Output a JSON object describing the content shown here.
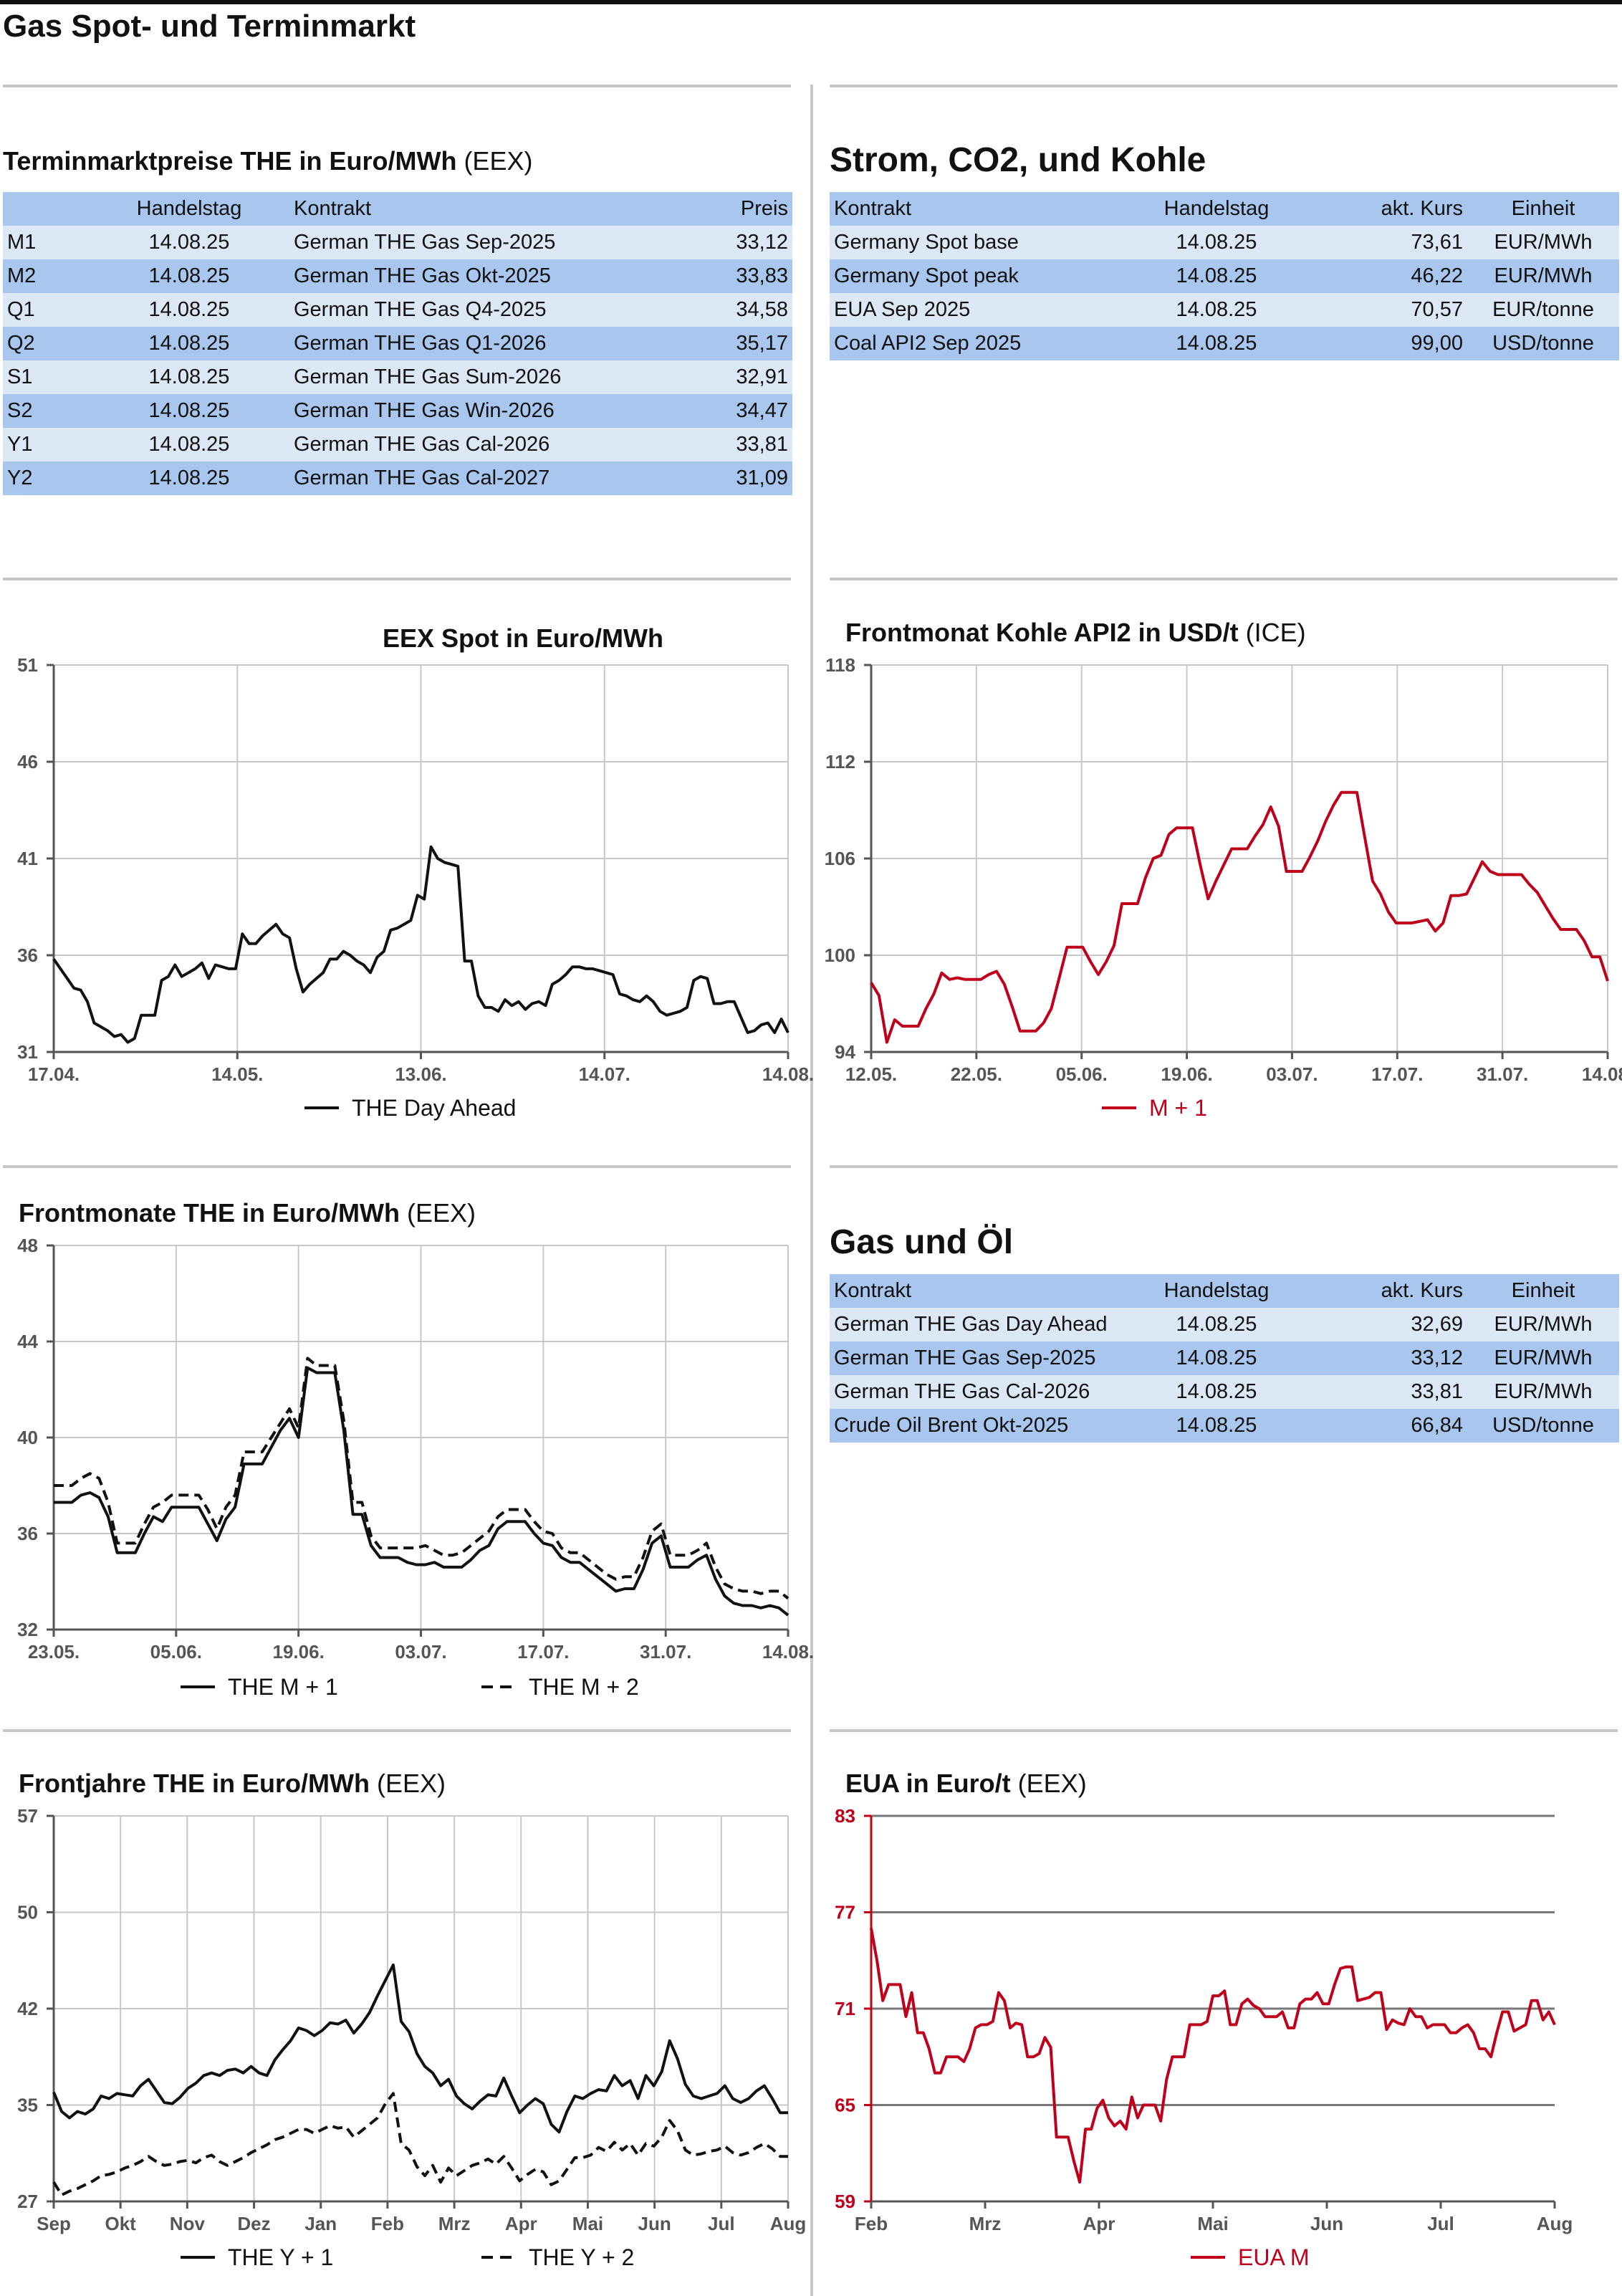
{
  "page_title": "Gas Spot- und Terminmarkt",
  "terminmarkt": {
    "title_bold": "Terminmarktpreise THE in Euro/MWh",
    "title_thin": " (EEX)",
    "headers": [
      "",
      "Handelstag",
      "Kontrakt",
      "Preis"
    ],
    "rows": [
      [
        "M1",
        "14.08.25",
        "German THE Gas Sep-2025",
        "33,12"
      ],
      [
        "M2",
        "14.08.25",
        "German THE Gas Okt-2025",
        "33,83"
      ],
      [
        "Q1",
        "14.08.25",
        "German THE Gas Q4-2025",
        "34,58"
      ],
      [
        "Q2",
        "14.08.25",
        "German THE Gas Q1-2026",
        "35,17"
      ],
      [
        "S1",
        "14.08.25",
        "German THE Gas Sum-2026",
        "32,91"
      ],
      [
        "S2",
        "14.08.25",
        "German THE Gas Win-2026",
        "34,47"
      ],
      [
        "Y1",
        "14.08.25",
        "German THE Gas Cal-2026",
        "33,81"
      ],
      [
        "Y2",
        "14.08.25",
        "German THE Gas Cal-2027",
        "31,09"
      ]
    ]
  },
  "strom": {
    "title": "Strom, CO2, und Kohle",
    "headers": [
      "Kontrakt",
      "Handelstag",
      "akt. Kurs",
      "Einheit"
    ],
    "rows": [
      [
        "Germany Spot base",
        "14.08.25",
        "73,61",
        "EUR/MWh"
      ],
      [
        "Germany Spot peak",
        "14.08.25",
        "46,22",
        "EUR/MWh"
      ],
      [
        "EUA Sep 2025",
        "14.08.25",
        "70,57",
        "EUR/tonne"
      ],
      [
        "Coal API2 Sep 2025",
        "14.08.25",
        "99,00",
        "USD/tonne"
      ]
    ]
  },
  "gasoel": {
    "title": "Gas und Öl",
    "headers": [
      "Kontrakt",
      "Handelstag",
      "akt. Kurs",
      "Einheit"
    ],
    "rows": [
      [
        "German THE Gas Day Ahead",
        "14.08.25",
        "32,69",
        "EUR/MWh"
      ],
      [
        "German THE Gas Sep-2025",
        "14.08.25",
        "33,12",
        "EUR/MWh"
      ],
      [
        "German THE Gas Cal-2026",
        "14.08.25",
        "33,81",
        "EUR/MWh"
      ],
      [
        "Crude Oil Brent Okt-2025",
        "14.08.25",
        "66,84",
        "USD/tonne"
      ]
    ]
  },
  "chart_data": [
    {
      "id": "spot",
      "type": "line",
      "title": "EEX Spot in Euro/MWh",
      "title_thin": "",
      "ylim": [
        31,
        51
      ],
      "yticks": [
        "51",
        "46",
        "41",
        "36",
        "31"
      ],
      "xticks": [
        "17.04.",
        "14.05.",
        "13.06.",
        "14.07.",
        "14.08."
      ],
      "grid": true,
      "legend": "bottom",
      "series": [
        {
          "name": "THE Day Ahead",
          "style": "solid",
          "color": "#111111",
          "values": [
            35.8,
            35.3,
            34.8,
            34.3,
            34.2,
            33.6,
            32.5,
            32.3,
            32.1,
            31.8,
            31.9,
            31.5,
            31.7,
            32.9,
            32.9,
            32.9,
            34.7,
            34.9,
            35.5,
            34.9,
            35.1,
            35.3,
            35.6,
            34.8,
            35.5,
            35.4,
            35.3,
            35.3,
            37.1,
            36.6,
            36.6,
            37.0,
            37.3,
            37.6,
            37.1,
            36.9,
            35.3,
            34.1,
            34.5,
            34.8,
            35.1,
            35.8,
            35.8,
            36.2,
            36.0,
            35.7,
            35.5,
            35.1,
            35.9,
            36.2,
            37.3,
            37.4,
            37.6,
            37.8,
            39.1,
            38.9,
            41.6,
            41.0,
            40.8,
            40.7,
            40.6,
            35.7,
            35.7,
            33.9,
            33.3,
            33.3,
            33.1,
            33.7,
            33.4,
            33.6,
            33.2,
            33.5,
            33.6,
            33.4,
            34.5,
            34.7,
            35.0,
            35.4,
            35.4,
            35.3,
            35.3,
            35.2,
            35.1,
            35.0,
            34.0,
            33.9,
            33.7,
            33.6,
            33.9,
            33.6,
            33.1,
            32.9,
            33.0,
            33.1,
            33.3,
            34.7,
            34.9,
            34.8,
            33.5,
            33.5,
            33.6,
            33.6,
            32.8,
            32.0,
            32.1,
            32.4,
            32.5,
            32.0,
            32.7,
            32.0
          ]
        }
      ]
    },
    {
      "id": "kohle",
      "type": "line",
      "title": "Frontmonat Kohle API2 in USD/t",
      "title_thin": " (ICE)",
      "ylim": [
        94,
        118
      ],
      "yticks": [
        "118",
        "112",
        "106",
        "100",
        "94"
      ],
      "xticks": [
        "12.05.",
        "22.05.",
        "05.06.",
        "19.06.",
        "03.07.",
        "17.07.",
        "31.07.",
        "14.08."
      ],
      "grid": true,
      "legend": "bottom",
      "series": [
        {
          "name": "M + 1",
          "style": "solid",
          "color": "#c0001a",
          "values": [
            98.3,
            97.5,
            94.6,
            96.0,
            95.6,
            95.6,
            95.6,
            96.7,
            97.6,
            98.9,
            98.5,
            98.6,
            98.5,
            98.5,
            98.5,
            98.8,
            99.0,
            98.2,
            96.8,
            95.3,
            95.3,
            95.3,
            95.8,
            96.7,
            98.6,
            100.5,
            100.5,
            100.5,
            99.6,
            98.8,
            99.6,
            100.6,
            103.2,
            103.2,
            103.2,
            104.8,
            106.0,
            106.2,
            107.5,
            107.9,
            107.9,
            107.9,
            105.6,
            103.5,
            104.6,
            105.6,
            106.6,
            106.6,
            106.6,
            107.4,
            108.1,
            109.2,
            108.0,
            105.2,
            105.2,
            105.2,
            106.1,
            107.1,
            108.3,
            109.3,
            110.1,
            110.1,
            110.1,
            107.3,
            104.6,
            103.8,
            102.7,
            102.0,
            102.0,
            102.0,
            102.1,
            102.2,
            101.5,
            102.0,
            103.7,
            103.7,
            103.8,
            104.8,
            105.8,
            105.2,
            105.0,
            105.0,
            105.0,
            105.0,
            104.4,
            103.9,
            103.1,
            102.3,
            101.6,
            101.6,
            101.6,
            100.9,
            99.9,
            99.9,
            98.4
          ]
        }
      ]
    },
    {
      "id": "frontmonate",
      "type": "line",
      "title": "Frontmonate THE in Euro/MWh",
      "title_thin": " (EEX)",
      "ylim": [
        32,
        48
      ],
      "yticks": [
        "48",
        "44",
        "40",
        "36",
        "32"
      ],
      "xticks": [
        "23.05.",
        "05.06.",
        "19.06.",
        "03.07.",
        "17.07.",
        "31.07.",
        "14.08."
      ],
      "grid": true,
      "legend": "bottom",
      "series": [
        {
          "name": "THE M + 1",
          "style": "solid",
          "color": "#111111",
          "values": [
            37.3,
            37.3,
            37.3,
            37.6,
            37.7,
            37.5,
            36.7,
            35.2,
            35.2,
            35.2,
            36.0,
            36.7,
            36.5,
            37.1,
            37.1,
            37.1,
            37.1,
            36.4,
            35.7,
            36.6,
            37.1,
            38.9,
            38.9,
            38.9,
            39.6,
            40.3,
            40.8,
            40.0,
            42.9,
            42.7,
            42.7,
            42.7,
            40.3,
            36.8,
            36.8,
            35.5,
            35.0,
            35.0,
            35.0,
            34.8,
            34.7,
            34.7,
            34.8,
            34.6,
            34.6,
            34.6,
            34.9,
            35.3,
            35.5,
            36.2,
            36.5,
            36.5,
            36.5,
            36.0,
            35.6,
            35.5,
            35.0,
            34.8,
            34.8,
            34.5,
            34.2,
            33.9,
            33.6,
            33.7,
            33.7,
            34.5,
            35.6,
            35.9,
            34.6,
            34.6,
            34.6,
            34.9,
            35.1,
            34.1,
            33.4,
            33.1,
            33.0,
            33.0,
            32.9,
            33.0,
            32.9,
            32.6
          ]
        },
        {
          "name": "THE M + 2",
          "style": "dashed",
          "color": "#111111",
          "values": [
            38.0,
            38.0,
            38.0,
            38.3,
            38.5,
            38.3,
            37.3,
            35.6,
            35.6,
            35.6,
            36.4,
            37.1,
            37.3,
            37.6,
            37.6,
            37.6,
            37.6,
            37.0,
            36.2,
            37.1,
            37.6,
            39.4,
            39.4,
            39.4,
            40.0,
            40.6,
            41.2,
            40.4,
            43.3,
            43.0,
            43.0,
            43.0,
            40.7,
            37.3,
            37.3,
            35.9,
            35.4,
            35.4,
            35.4,
            35.4,
            35.4,
            35.5,
            35.3,
            35.1,
            35.1,
            35.2,
            35.5,
            35.8,
            36.1,
            36.7,
            37.0,
            37.0,
            37.0,
            36.5,
            36.1,
            36.0,
            35.4,
            35.2,
            35.2,
            34.9,
            34.6,
            34.3,
            34.1,
            34.2,
            34.2,
            35.0,
            36.1,
            36.4,
            35.1,
            35.1,
            35.1,
            35.3,
            35.6,
            34.6,
            33.9,
            33.7,
            33.6,
            33.6,
            33.5,
            33.6,
            33.6,
            33.3
          ]
        }
      ]
    },
    {
      "id": "frontjahre",
      "type": "line",
      "title": "Frontjahre THE in Euro/MWh",
      "title_thin": " (EEX)",
      "ylim": [
        27,
        57
      ],
      "yticks": [
        "57",
        "50",
        "42",
        "35",
        "27"
      ],
      "xticks": [
        "Sep",
        "Okt",
        "Nov",
        "Dez",
        "Jan",
        "Feb",
        "Mrz",
        "Apr",
        "Mai",
        "Jun",
        "Jul",
        "Aug"
      ],
      "grid": true,
      "legend": "bottom",
      "series": [
        {
          "name": "THE Y + 1",
          "style": "solid",
          "color": "#111111",
          "values": [
            35.5,
            34.0,
            33.5,
            34.0,
            33.8,
            34.2,
            35.2,
            35.0,
            35.4,
            35.3,
            35.2,
            36.0,
            36.5,
            35.6,
            34.7,
            34.6,
            35.1,
            35.8,
            36.2,
            36.8,
            37.0,
            36.8,
            37.2,
            37.3,
            37.0,
            37.5,
            37.0,
            36.8,
            38.0,
            38.8,
            39.5,
            40.5,
            40.3,
            39.9,
            40.3,
            40.9,
            40.8,
            41.1,
            40.1,
            40.8,
            41.7,
            43.0,
            44.2,
            45.4,
            41.0,
            40.2,
            38.5,
            37.5,
            37.0,
            36.0,
            36.5,
            35.2,
            34.6,
            34.2,
            34.8,
            35.3,
            35.2,
            36.6,
            35.2,
            33.9,
            34.5,
            35.0,
            34.6,
            33.0,
            32.4,
            34.0,
            35.2,
            35.0,
            35.4,
            35.7,
            35.6,
            36.8,
            36.0,
            36.4,
            35.0,
            36.8,
            36.0,
            37.1,
            39.5,
            38.1,
            36.1,
            35.2,
            35.0,
            35.2,
            35.4,
            36.0,
            35.0,
            34.7,
            35.0,
            35.6,
            36.0,
            35.0,
            33.9,
            33.9
          ]
        },
        {
          "name": "THE Y + 2",
          "style": "dashed",
          "color": "#111111",
          "values": [
            28.5,
            27.5,
            27.8,
            28.0,
            28.3,
            28.6,
            29.0,
            29.1,
            29.3,
            29.6,
            29.8,
            30.1,
            30.5,
            30.1,
            29.8,
            29.9,
            30.1,
            30.2,
            30.0,
            30.4,
            30.6,
            30.1,
            29.8,
            30.1,
            30.4,
            30.8,
            31.1,
            31.4,
            31.8,
            32.0,
            32.3,
            32.6,
            32.6,
            32.3,
            32.6,
            32.9,
            32.7,
            32.8,
            32.0,
            32.5,
            33.0,
            33.5,
            34.6,
            35.4,
            31.5,
            31.0,
            29.7,
            29.0,
            29.8,
            28.5,
            29.6,
            29.0,
            29.4,
            29.8,
            30.0,
            30.3,
            29.9,
            30.5,
            29.6,
            28.6,
            29.1,
            29.5,
            29.3,
            28.3,
            28.6,
            29.5,
            30.4,
            30.4,
            30.6,
            31.2,
            30.9,
            31.6,
            31.0,
            31.5,
            30.6,
            31.5,
            31.3,
            32.0,
            33.3,
            32.5,
            31.0,
            30.6,
            30.7,
            30.9,
            31.0,
            31.3,
            30.8,
            30.6,
            30.8,
            31.2,
            31.5,
            31.1,
            30.5,
            30.5
          ]
        }
      ]
    },
    {
      "id": "eua",
      "type": "line",
      "title": "EUA in Euro/t",
      "title_thin": " (EEX)",
      "ylim": [
        59,
        83
      ],
      "yticks": [
        "83",
        "77",
        "71",
        "65",
        "59"
      ],
      "xticks": [
        "Feb",
        "Mrz",
        "Apr",
        "Mai",
        "Jun",
        "Jul",
        "Aug"
      ],
      "grid": true,
      "legend": "bottom",
      "series": [
        {
          "name": "EUA M",
          "style": "solid",
          "color": "#c0001a",
          "values": [
            76.0,
            74.0,
            71.5,
            72.5,
            72.5,
            72.5,
            70.5,
            72.0,
            69.5,
            69.5,
            68.5,
            67.0,
            67.0,
            68.0,
            68.0,
            68.0,
            67.7,
            68.5,
            69.8,
            70.0,
            70.0,
            70.2,
            72.0,
            71.5,
            69.8,
            70.1,
            70.0,
            68.0,
            68.0,
            68.2,
            69.2,
            68.6,
            63.0,
            63.0,
            63.0,
            61.5,
            60.2,
            63.5,
            63.5,
            64.8,
            65.3,
            64.2,
            63.7,
            64.0,
            63.5,
            65.5,
            64.2,
            65.0,
            65.0,
            65.0,
            64.0,
            66.6,
            68.0,
            68.0,
            68.0,
            70.0,
            70.0,
            70.0,
            70.2,
            71.8,
            71.8,
            72.1,
            70.0,
            70.0,
            71.3,
            71.6,
            71.2,
            71.0,
            70.5,
            70.5,
            70.5,
            70.8,
            69.8,
            69.8,
            71.3,
            71.6,
            71.6,
            72.0,
            71.3,
            71.3,
            72.5,
            73.5,
            73.6,
            73.6,
            71.5,
            71.6,
            71.7,
            72.0,
            72.0,
            69.7,
            70.3,
            70.1,
            70.0,
            71.0,
            70.5,
            70.5,
            69.8,
            70.0,
            70.0,
            70.0,
            69.5,
            69.5,
            69.8,
            70.0,
            69.5,
            68.5,
            68.5,
            68.0,
            69.5,
            70.8,
            70.8,
            69.6,
            69.8,
            70.0,
            71.5,
            71.5,
            70.3,
            70.8,
            70.0
          ]
        }
      ]
    }
  ]
}
